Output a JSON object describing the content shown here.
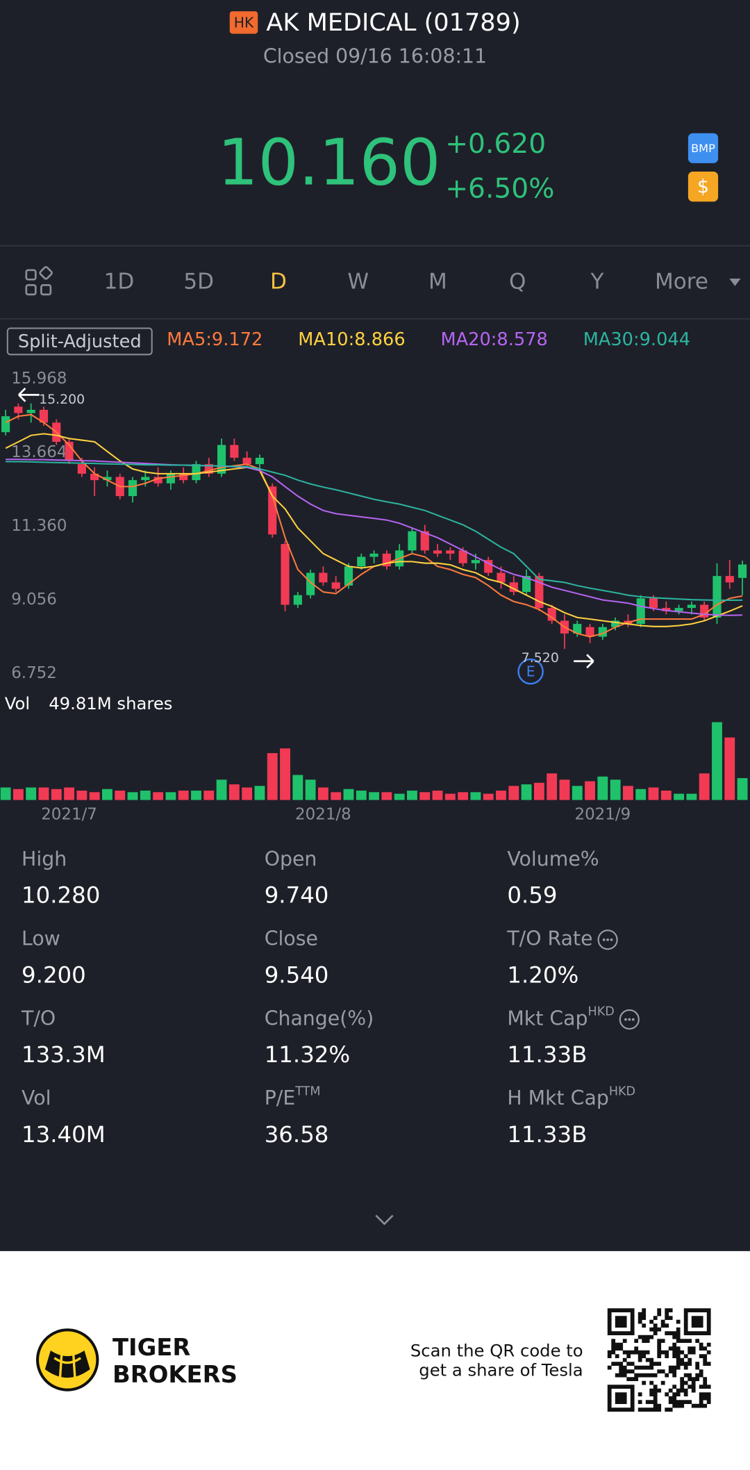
{
  "header": {
    "exchange": "HK",
    "title": "AK MEDICAL (01789)",
    "status": "Closed 09/16 16:08:11",
    "price": "10.160",
    "change": "+0.620",
    "change_pct": "+6.50%",
    "icons": [
      "BMP",
      "$"
    ]
  },
  "tabs": {
    "items": [
      "1D",
      "5D",
      "D",
      "W",
      "M",
      "Q",
      "Y",
      "More"
    ],
    "active": 2
  },
  "chart_data": {
    "type": "candlestick",
    "adjustment": "Split-Adjusted",
    "categories": [
      null,
      null,
      null,
      null,
      null,
      "2021/7",
      null,
      null,
      null,
      null,
      null,
      null,
      null,
      null,
      null,
      null,
      null,
      null,
      null,
      null,
      null,
      null,
      null,
      null,
      null,
      "2021/8",
      null,
      null,
      null,
      null,
      null,
      null,
      null,
      null,
      null,
      null,
      null,
      null,
      null,
      null,
      null,
      null,
      null,
      null,
      null,
      null,
      null,
      "2021/9",
      null,
      null,
      null,
      null,
      null,
      null,
      null,
      null,
      null,
      null,
      null
    ],
    "candles": [
      [
        14.3,
        15.0,
        14.2,
        14.8
      ],
      [
        15.1,
        15.2,
        14.7,
        14.9
      ],
      [
        14.9,
        15.2,
        14.6,
        15.0
      ],
      [
        15.0,
        15.1,
        14.5,
        14.6
      ],
      [
        14.6,
        14.7,
        13.9,
        14.0
      ],
      [
        14.0,
        14.1,
        13.3,
        13.4
      ],
      [
        13.3,
        13.5,
        12.9,
        13.0
      ],
      [
        13.0,
        13.2,
        12.3,
        12.8
      ],
      [
        12.8,
        13.1,
        12.6,
        12.9
      ],
      [
        12.9,
        13.0,
        12.2,
        12.3
      ],
      [
        12.3,
        12.9,
        12.1,
        12.8
      ],
      [
        12.8,
        13.1,
        12.6,
        12.9
      ],
      [
        12.9,
        13.2,
        12.6,
        12.7
      ],
      [
        12.7,
        13.1,
        12.5,
        13.0
      ],
      [
        13.0,
        13.2,
        12.7,
        12.8
      ],
      [
        12.8,
        13.4,
        12.7,
        13.3
      ],
      [
        13.3,
        13.5,
        12.9,
        13.0
      ],
      [
        13.0,
        14.1,
        12.9,
        13.9
      ],
      [
        13.9,
        14.1,
        13.4,
        13.5
      ],
      [
        13.5,
        13.7,
        13.2,
        13.3
      ],
      [
        13.3,
        13.6,
        13.1,
        13.5
      ],
      [
        12.6,
        12.7,
        11.0,
        11.1
      ],
      [
        10.8,
        10.9,
        8.7,
        8.9
      ],
      [
        8.9,
        9.3,
        8.8,
        9.2
      ],
      [
        9.2,
        10.0,
        9.1,
        9.9
      ],
      [
        9.9,
        10.1,
        9.5,
        9.6
      ],
      [
        9.6,
        9.8,
        9.3,
        9.4
      ],
      [
        9.5,
        10.2,
        9.4,
        10.1
      ],
      [
        10.1,
        10.5,
        10.0,
        10.4
      ],
      [
        10.4,
        10.6,
        10.2,
        10.5
      ],
      [
        10.5,
        10.6,
        10.0,
        10.1
      ],
      [
        10.1,
        10.8,
        10.0,
        10.6
      ],
      [
        10.6,
        11.3,
        10.5,
        11.2
      ],
      [
        11.2,
        11.4,
        10.5,
        10.6
      ],
      [
        10.6,
        10.8,
        10.4,
        10.5
      ],
      [
        10.6,
        10.7,
        10.3,
        10.5
      ],
      [
        10.6,
        10.7,
        10.1,
        10.2
      ],
      [
        10.2,
        10.5,
        10.0,
        10.3
      ],
      [
        10.3,
        10.4,
        9.8,
        9.9
      ],
      [
        9.9,
        10.1,
        9.4,
        9.6
      ],
      [
        9.6,
        9.8,
        9.2,
        9.3
      ],
      [
        9.3,
        10.0,
        9.2,
        9.8
      ],
      [
        9.8,
        9.9,
        8.7,
        8.8
      ],
      [
        8.8,
        8.9,
        8.3,
        8.4
      ],
      [
        8.4,
        8.6,
        7.52,
        8.0
      ],
      [
        8.0,
        8.4,
        7.9,
        8.3
      ],
      [
        8.2,
        8.3,
        7.7,
        7.9
      ],
      [
        7.9,
        8.3,
        7.8,
        8.2
      ],
      [
        8.2,
        8.5,
        8.1,
        8.4
      ],
      [
        8.4,
        8.6,
        8.2,
        8.3
      ],
      [
        8.3,
        9.2,
        8.2,
        9.1
      ],
      [
        9.1,
        9.2,
        8.7,
        8.8
      ],
      [
        8.8,
        9.0,
        8.6,
        8.7
      ],
      [
        8.7,
        8.9,
        8.6,
        8.8
      ],
      [
        8.8,
        9.0,
        8.6,
        8.9
      ],
      [
        8.9,
        9.0,
        8.4,
        8.5
      ],
      [
        8.5,
        10.2,
        8.3,
        9.8
      ],
      [
        9.8,
        10.3,
        9.4,
        9.6
      ],
      [
        9.74,
        10.28,
        9.2,
        10.16
      ]
    ],
    "up_color": "#1fc26b",
    "down_color": "#f23a55",
    "ylim": [
      6.752,
      15.968
    ],
    "yticks": [
      15.968,
      13.664,
      {
        "value": 11.36,
        "label": "11.360"
      },
      9.056,
      6.752
    ],
    "series": [
      {
        "name": "MA5:9.172",
        "color": "#ff7a3d",
        "values": [
          14.6,
          14.8,
          14.85,
          14.6,
          14.3,
          13.9,
          13.4,
          13.0,
          12.8,
          12.6,
          12.6,
          12.7,
          12.85,
          12.9,
          12.95,
          13.0,
          13.1,
          13.2,
          13.25,
          13.3,
          13.15,
          12.3,
          11.0,
          10.0,
          9.6,
          9.3,
          9.25,
          9.55,
          9.85,
          10.1,
          10.2,
          10.35,
          10.5,
          10.4,
          10.1,
          10.0,
          9.85,
          9.75,
          9.5,
          9.2,
          9.0,
          8.9,
          8.75,
          8.5,
          8.2,
          8.0,
          7.9,
          8.0,
          8.2,
          8.35,
          8.45,
          8.45,
          8.45,
          8.45,
          8.45,
          8.6,
          8.9,
          9.1,
          9.172
        ]
      },
      {
        "name": "MA10:8.866",
        "color": "#ffd23f",
        "values": [
          13.8,
          14.0,
          14.2,
          14.25,
          14.2,
          14.1,
          14.05,
          14.0,
          13.7,
          13.4,
          13.15,
          13.05,
          13.0,
          13.0,
          13.0,
          13.0,
          13.05,
          13.1,
          13.15,
          13.2,
          13.1,
          12.3,
          11.9,
          11.3,
          10.9,
          10.5,
          10.3,
          10.1,
          10.05,
          10.1,
          10.2,
          10.25,
          10.25,
          10.2,
          10.2,
          10.15,
          10.0,
          9.9,
          9.7,
          9.6,
          9.4,
          9.2,
          9.0,
          8.85,
          8.65,
          8.5,
          8.45,
          8.4,
          8.35,
          8.3,
          8.25,
          8.22,
          8.22,
          8.25,
          8.3,
          8.4,
          8.55,
          8.7,
          8.866
        ]
      },
      {
        "name": "MA20:8.578",
        "color": "#b565f2",
        "values": [
          13.45,
          13.45,
          13.44,
          13.44,
          13.43,
          13.42,
          13.41,
          13.4,
          13.38,
          13.36,
          13.34,
          13.32,
          13.3,
          13.28,
          13.27,
          13.26,
          13.25,
          13.24,
          13.22,
          13.2,
          13.1,
          12.9,
          12.6,
          12.3,
          12.05,
          11.85,
          11.75,
          11.7,
          11.65,
          11.6,
          11.55,
          11.45,
          11.3,
          11.15,
          11.0,
          10.8,
          10.6,
          10.4,
          10.2,
          10.0,
          9.85,
          9.75,
          9.6,
          9.45,
          9.35,
          9.25,
          9.15,
          9.05,
          9.0,
          8.95,
          8.85,
          8.78,
          8.72,
          8.68,
          8.64,
          8.6,
          8.58,
          8.57,
          8.578
        ]
      },
      {
        "name": "MA30:9.044",
        "color": "#2bb5a0",
        "values": [
          13.38,
          13.38,
          13.37,
          13.36,
          13.35,
          13.34,
          13.33,
          13.32,
          13.31,
          13.3,
          13.29,
          13.28,
          13.28,
          13.27,
          13.27,
          13.26,
          13.25,
          13.24,
          13.23,
          13.22,
          13.15,
          13.05,
          12.95,
          12.8,
          12.68,
          12.58,
          12.5,
          12.4,
          12.3,
          12.2,
          12.12,
          12.05,
          11.95,
          11.85,
          11.7,
          11.55,
          11.4,
          11.2,
          10.95,
          10.7,
          10.5,
          10.1,
          9.7,
          9.65,
          9.6,
          9.5,
          9.42,
          9.35,
          9.28,
          9.2,
          9.15,
          9.12,
          9.1,
          9.08,
          9.06,
          9.05,
          9.04,
          9.04,
          9.044
        ]
      }
    ],
    "high_marker": {
      "value": 15.2,
      "label": "15.200"
    },
    "low_marker": {
      "value": 7.52,
      "label": "7.520"
    },
    "event_marker": "E",
    "volume": {
      "label": "Vol",
      "total": "49.81M shares",
      "values": [
        8,
        7,
        8,
        8,
        7,
        8,
        6,
        5,
        7,
        6,
        5,
        6,
        5,
        5,
        6,
        6,
        6,
        13,
        10,
        8,
        9,
        30,
        33,
        16,
        13,
        8,
        5,
        7,
        6,
        5,
        5,
        4,
        6,
        5,
        6,
        4,
        5,
        5,
        4,
        6,
        9,
        10,
        11,
        17,
        13,
        9,
        12,
        15,
        13,
        9,
        7,
        8,
        6,
        4,
        4,
        17,
        49.81,
        40,
        14
      ]
    }
  },
  "stats": [
    {
      "label": "High",
      "value": "10.280"
    },
    {
      "label": "Open",
      "value": "9.740"
    },
    {
      "label": "Volume%",
      "value": "0.59"
    },
    {
      "label": "Low",
      "value": "9.200"
    },
    {
      "label": "Close",
      "value": "9.540"
    },
    {
      "label": "T/O Rate",
      "value": "1.20%",
      "info": true
    },
    {
      "label": "T/O",
      "value": "133.3M"
    },
    {
      "label": "Change(%)",
      "value": "11.32%"
    },
    {
      "label": "Mkt Cap",
      "sup": "HKD",
      "value": "11.33B",
      "info": true
    },
    {
      "label": "Vol",
      "value": "13.40M"
    },
    {
      "label": "P/E",
      "sup": "TTM",
      "value": "36.58"
    },
    {
      "label": "H Mkt Cap",
      "sup": "HKD",
      "value": "11.33B"
    }
  ],
  "footer": {
    "brand": [
      "TIGER",
      "BROKERS"
    ],
    "cta": [
      "Scan the QR code to",
      "get a share of Tesla"
    ]
  }
}
